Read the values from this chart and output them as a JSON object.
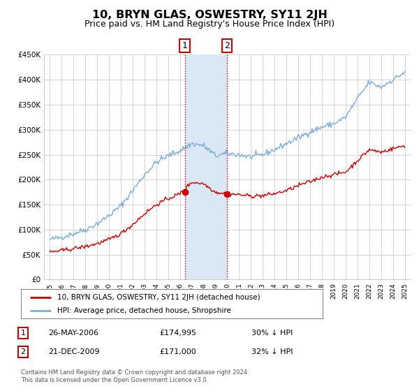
{
  "title": "10, BRYN GLAS, OSWESTRY, SY11 2JH",
  "subtitle": "Price paid vs. HM Land Registry's House Price Index (HPI)",
  "title_fontsize": 11.5,
  "subtitle_fontsize": 9,
  "ylim": [
    0,
    450000
  ],
  "yticks": [
    0,
    50000,
    100000,
    150000,
    200000,
    250000,
    300000,
    350000,
    400000,
    450000
  ],
  "ytick_labels": [
    "£0",
    "£50K",
    "£100K",
    "£150K",
    "£200K",
    "£250K",
    "£300K",
    "£350K",
    "£400K",
    "£450K"
  ],
  "xlim_start": 1994.5,
  "xlim_end": 2025.5,
  "transactions": [
    {
      "num": 1,
      "date": "26-MAY-2006",
      "price": 174995,
      "year": 2006.4,
      "pct": "30% ↓ HPI"
    },
    {
      "num": 2,
      "date": "21-DEC-2009",
      "price": 171000,
      "year": 2009.97,
      "pct": "32% ↓ HPI"
    }
  ],
  "legend_label_red": "10, BRYN GLAS, OSWESTRY, SY11 2JH (detached house)",
  "legend_label_blue": "HPI: Average price, detached house, Shropshire",
  "footer": "Contains HM Land Registry data © Crown copyright and database right 2024.\nThis data is licensed under the Open Government Licence v3.0.",
  "red_color": "#cc0000",
  "blue_color": "#7aaddc",
  "highlight_color": "#dae8f5",
  "grid_color": "#cccccc",
  "background_color": "#ffffff",
  "hpi_base": [
    80000,
    85000,
    92000,
    100000,
    112000,
    128000,
    148000,
    178000,
    210000,
    235000,
    248000,
    258000,
    272000,
    268000,
    248000,
    252000,
    250000,
    245000,
    250000,
    260000,
    272000,
    284000,
    296000,
    305000,
    312000,
    325000,
    362000,
    395000,
    385000,
    400000,
    415000
  ],
  "red_base": [
    55000,
    58000,
    62000,
    66000,
    72000,
    80000,
    92000,
    110000,
    132000,
    150000,
    162000,
    172000,
    195000,
    192000,
    175000,
    172000,
    170000,
    167000,
    168000,
    172000,
    178000,
    188000,
    196000,
    205000,
    210000,
    215000,
    238000,
    260000,
    255000,
    262000,
    268000
  ]
}
